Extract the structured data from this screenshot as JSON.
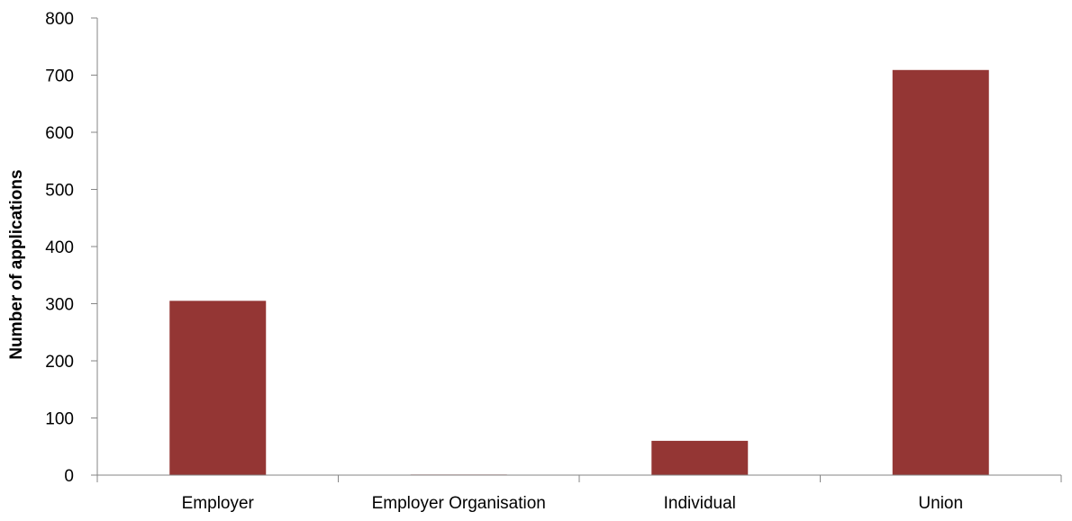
{
  "chart_data": {
    "type": "bar",
    "title": "",
    "xlabel": "",
    "ylabel": "Number of applications",
    "categories": [
      "Employer",
      "Employer Organisation",
      "Individual",
      "Union"
    ],
    "values": [
      305,
      1,
      60,
      709
    ],
    "ylim": [
      0,
      800
    ],
    "yticks": [
      0,
      100,
      200,
      300,
      400,
      500,
      600,
      700,
      800
    ],
    "grid": false,
    "legend": "none",
    "bar_color": "#943634"
  }
}
